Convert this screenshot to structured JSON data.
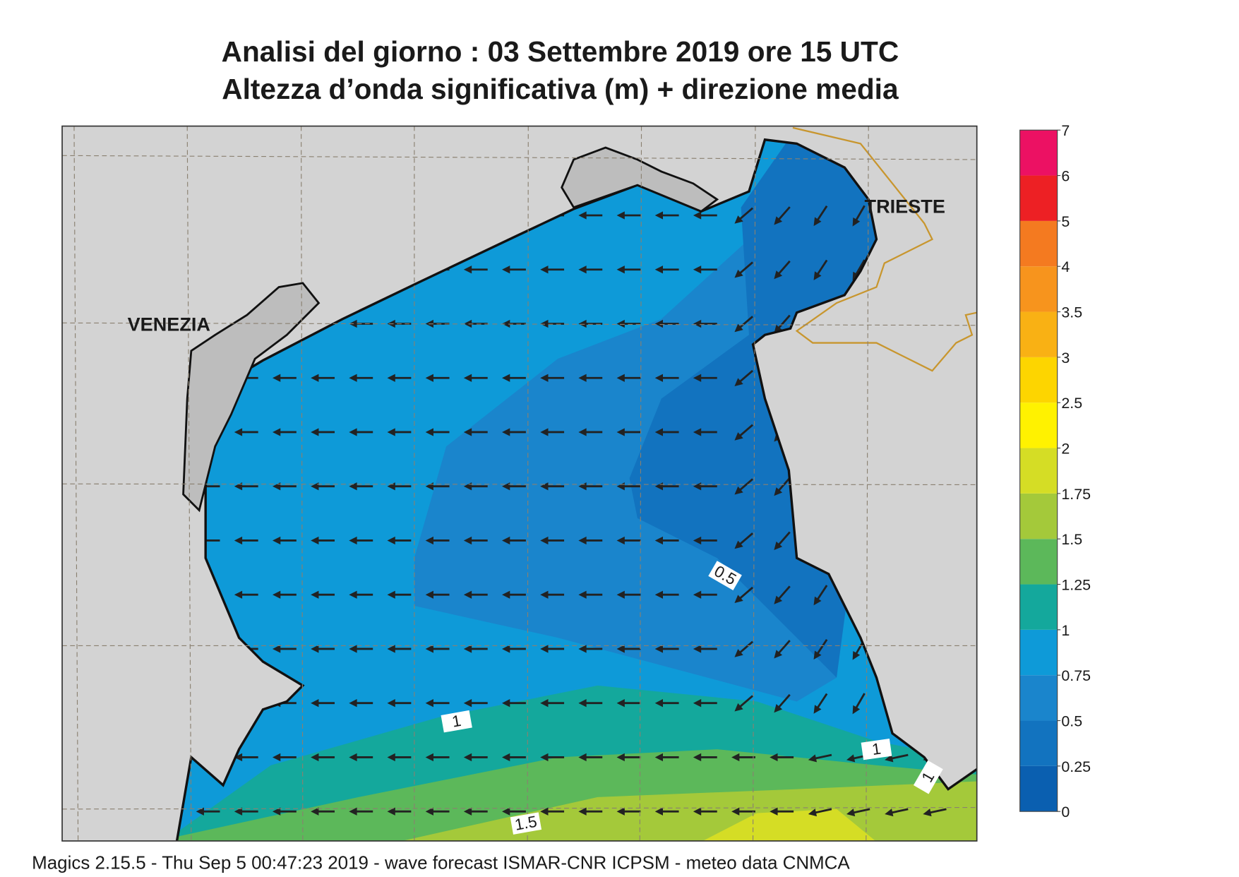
{
  "header": {
    "title": "Analisi del giorno :  03 Settembre 2019   ore 15 UTC",
    "subtitle": "Altezza d’onda significativa (m) + direzione media"
  },
  "places": [
    "VENEZIA",
    "TRIESTE"
  ],
  "contour_labels": [
    0.5,
    1,
    1,
    1,
    1.5
  ],
  "colorbar": {
    "levels": [
      0,
      0.25,
      0.5,
      0.75,
      1,
      1.25,
      1.5,
      1.75,
      2,
      2.5,
      3,
      3.5,
      4,
      5,
      6,
      7
    ],
    "colors": [
      "#0a5fb0",
      "#1273bf",
      "#1a85cc",
      "#0e9ad8",
      "#14a89c",
      "#5cb85a",
      "#a4c93a",
      "#d5dd25",
      "#fff200",
      "#fdd500",
      "#f9b114",
      "#f7941d",
      "#f47a20",
      "#ed2024",
      "#ec1163"
    ]
  },
  "footer": "Magics 2.15.5 - Thu Sep  5 00:47:23 2019 - wave forecast  ISMAR-CNR  ICPSM - meteo data   CNMCA"
}
